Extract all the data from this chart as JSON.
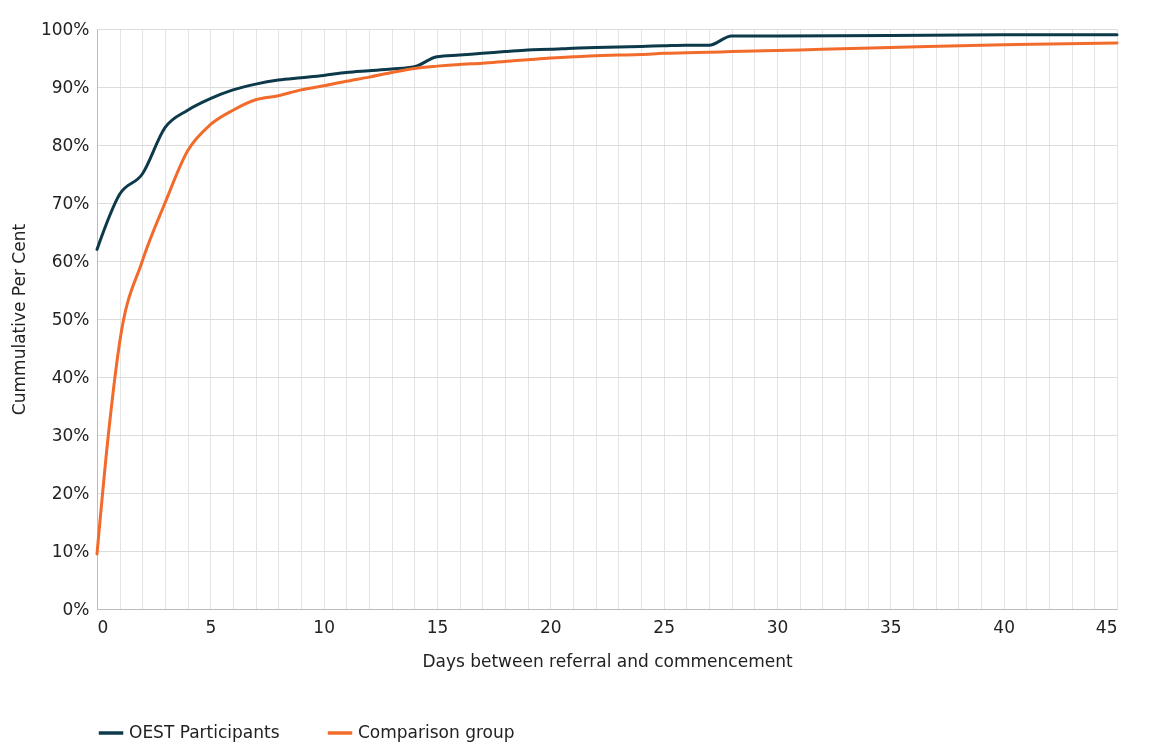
{
  "chart_data": {
    "type": "line",
    "xlabel": "Days between  referral and commencement",
    "ylabel": "Cummulative Per Cent",
    "xlim": [
      0,
      45
    ],
    "xticks": [
      0,
      {
        "value": 1,
        "label": null
      },
      {
        "value": 2,
        "label": null
      },
      {
        "value": 3,
        "label": null
      },
      {
        "value": 4,
        "label": null
      },
      5,
      {
        "value": 6,
        "label": null
      },
      {
        "value": 7,
        "label": null
      },
      {
        "value": 8,
        "label": null
      },
      {
        "value": 9,
        "label": null
      },
      10,
      {
        "value": 11,
        "label": null
      },
      {
        "value": 12,
        "label": null
      },
      {
        "value": 13,
        "label": null
      },
      {
        "value": 14,
        "label": null
      },
      15,
      {
        "value": 16,
        "label": null
      },
      {
        "value": 17,
        "label": null
      },
      {
        "value": 18,
        "label": null
      },
      {
        "value": 19,
        "label": null
      },
      20,
      {
        "value": 21,
        "label": null
      },
      {
        "value": 22,
        "label": null
      },
      {
        "value": 23,
        "label": null
      },
      {
        "value": 24,
        "label": null
      },
      25,
      {
        "value": 26,
        "label": null
      },
      {
        "value": 27,
        "label": null
      },
      {
        "value": 28,
        "label": null
      },
      {
        "value": 29,
        "label": null
      },
      30,
      {
        "value": 31,
        "label": null
      },
      {
        "value": 32,
        "label": null
      },
      {
        "value": 33,
        "label": null
      },
      {
        "value": 34,
        "label": null
      },
      35,
      {
        "value": 36,
        "label": null
      },
      {
        "value": 37,
        "label": null
      },
      {
        "value": 38,
        "label": null
      },
      {
        "value": 39,
        "label": null
      },
      40,
      {
        "value": 41,
        "label": null
      },
      {
        "value": 42,
        "label": null
      },
      {
        "value": 43,
        "label": null
      },
      {
        "value": 44,
        "label": null
      },
      45
    ],
    "ylim": [
      0,
      100
    ],
    "yticks": [
      {
        "value": 0,
        "label": "0%"
      },
      {
        "value": 10,
        "label": "10%"
      },
      {
        "value": 20,
        "label": "20%"
      },
      {
        "value": 30,
        "label": "30%"
      },
      {
        "value": 40,
        "label": "40%"
      },
      {
        "value": 50,
        "label": "50%"
      },
      {
        "value": 60,
        "label": "60%"
      },
      {
        "value": 70,
        "label": "70%"
      },
      {
        "value": 80,
        "label": "80%"
      },
      {
        "value": 90,
        "label": "90%"
      },
      {
        "value": 100,
        "label": "100%"
      }
    ],
    "grid": true,
    "legend": "bottom",
    "marker": "none",
    "line_style": "solid",
    "series": [
      {
        "name": "OEST Participants",
        "color": "#0d3a4a",
        "x": [
          0,
          1,
          2,
          3,
          4,
          5,
          6,
          7,
          8,
          9,
          10,
          11,
          12,
          13,
          14,
          15,
          16,
          17,
          18,
          19,
          20,
          21,
          22,
          23,
          24,
          25,
          26,
          27,
          28,
          29,
          30,
          35,
          40,
          45
        ],
        "values": [
          62,
          71.5,
          75,
          83,
          86,
          88,
          89.5,
          90.5,
          91.2,
          91.6,
          92,
          92.5,
          92.8,
          93.1,
          93.5,
          95.2,
          95.5,
          95.8,
          96.1,
          96.4,
          96.5,
          96.7,
          96.8,
          96.9,
          97,
          97.1,
          97.2,
          97.2,
          98.8,
          98.8,
          98.8,
          98.9,
          99,
          99
        ]
      },
      {
        "name": "Comparison group",
        "color": "#f26b2a",
        "x": [
          0,
          0.5,
          1,
          2,
          3,
          4,
          5,
          6,
          7,
          8,
          9,
          10,
          11,
          12,
          13,
          14,
          15,
          16,
          17,
          18,
          19,
          20,
          21,
          22,
          23,
          24,
          25,
          26,
          27,
          28,
          30,
          32,
          35,
          40,
          45
        ],
        "values": [
          9.5,
          30,
          46,
          60,
          70,
          79,
          83.5,
          86,
          87.8,
          88.5,
          89.5,
          90.2,
          91,
          91.7,
          92.5,
          93.2,
          93.6,
          93.9,
          94.1,
          94.4,
          94.7,
          95,
          95.2,
          95.4,
          95.5,
          95.6,
          95.8,
          95.9,
          96,
          96.1,
          96.3,
          96.5,
          96.8,
          97.3,
          97.6
        ]
      }
    ]
  }
}
